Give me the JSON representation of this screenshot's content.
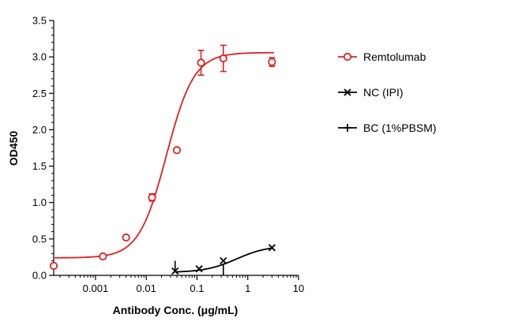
{
  "chart_data": {
    "type": "scatter",
    "title": "",
    "xlabel": "Antibody Conc. (μg/mL)",
    "ylabel": "OD450",
    "x_scale": "log",
    "xlim": [
      0.00015,
      10
    ],
    "ylim": [
      0,
      3.5
    ],
    "x_ticks": [
      0.001,
      0.01,
      0.1,
      1,
      10
    ],
    "x_tick_labels": [
      "0.001",
      "0.01",
      "0.1",
      "1",
      "10"
    ],
    "y_ticks": [
      0,
      0.5,
      1.0,
      1.5,
      2.0,
      2.5,
      3.0,
      3.5
    ],
    "y_tick_labels": [
      "0.0",
      "0.5",
      "1.0",
      "1.5",
      "2.0",
      "2.5",
      "3.0",
      "3.5"
    ],
    "grid": false,
    "legend_position": "right",
    "series": [
      {
        "name": "Remtolumab",
        "color": "#e02020",
        "marker": "open-circle",
        "x": [
          0.00015,
          0.0014,
          0.004,
          0.013,
          0.04,
          0.12,
          0.33,
          3.0
        ],
        "y": [
          0.13,
          0.26,
          0.52,
          1.07,
          1.72,
          2.92,
          2.98,
          2.93
        ],
        "err": [
          0,
          0,
          0,
          0.05,
          0,
          0.17,
          0.18,
          0.06
        ],
        "fit": {
          "bottom": 0.24,
          "top": 3.06,
          "ec50": 0.025,
          "hill": 1.6
        }
      },
      {
        "name": "NC (IPI)",
        "color": "#000000",
        "marker": "x",
        "x": [
          0.037,
          0.11,
          0.33,
          3.0
        ],
        "y": [
          0.06,
          0.09,
          0.2,
          0.38
        ],
        "err": [
          0,
          0,
          0,
          0
        ],
        "fit": {
          "bottom": 0.04,
          "top": 0.41,
          "ec50": 0.6,
          "hill": 1.4,
          "xmin": 0.037,
          "xmax": 3.0
        }
      },
      {
        "name": "BC (1%PBSM)",
        "color": "#000000",
        "marker": "plus",
        "x": [
          0.037,
          0.33
        ],
        "y": [
          0.12,
          0.08
        ],
        "err": [
          0.08,
          0.08
        ],
        "fit": null
      }
    ]
  }
}
